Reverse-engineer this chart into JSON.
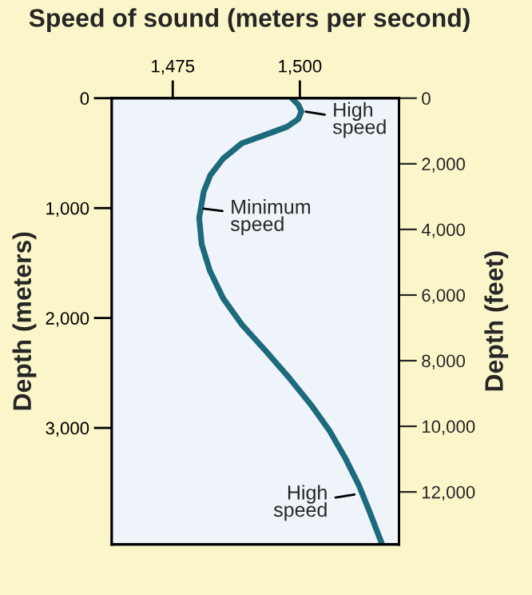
{
  "chart_data": {
    "type": "line",
    "xlabel": "Speed of sound (meters per second)",
    "ylabel": "Depth (meters)",
    "y2label": "Depth (feet)",
    "xlim": [
      1463,
      1519.5
    ],
    "xticks": [
      {
        "value": 1475,
        "label": "1,475"
      },
      {
        "value": 1500,
        "label": "1,500"
      }
    ],
    "ylim": [
      4060,
      0
    ],
    "yticks": [
      0,
      {
        "value": 1000,
        "label": "1,000"
      },
      {
        "value": 2000,
        "label": "2,000"
      },
      {
        "value": 3000,
        "label": "3,000"
      }
    ],
    "y2lim": [
      13600,
      0
    ],
    "y2ticks": [
      0,
      {
        "value": 2000,
        "label": "2,000"
      },
      {
        "value": 4000,
        "label": "4,000"
      },
      {
        "value": 6000,
        "label": "6,000"
      },
      {
        "value": 8000,
        "label": "8,000"
      },
      {
        "value": 10000,
        "label": "10,000"
      },
      {
        "value": 12000,
        "label": "12,000"
      }
    ],
    "series": [
      {
        "color": "#1c6a7c",
        "x": [
          1498.4,
          1499.7,
          1500.3,
          1499.7,
          1497.5,
          1492.8,
          1488.6,
          1484.9,
          1482.4,
          1481.1,
          1480.2,
          1480.7,
          1482.3,
          1484.9,
          1488.6,
          1493.3,
          1498.0,
          1502.2,
          1505.9,
          1509.0,
          1511.6,
          1513.7,
          1516.1
        ],
        "values": [
          0,
          60,
          120,
          190,
          260,
          340,
          410,
          550,
          700,
          850,
          1090,
          1330,
          1570,
          1820,
          2060,
          2300,
          2550,
          2790,
          3030,
          3280,
          3520,
          3760,
          4050
        ]
      }
    ],
    "annotations": [
      {
        "text": "High\nspeed",
        "x": 1500.3,
        "y": 117
      },
      {
        "text": "Minimum\nspeed",
        "x": 1480.2,
        "y": 1000
      },
      {
        "text": "High\nspeed",
        "x": 1511.6,
        "y": 3600
      }
    ],
    "grid": false,
    "legend": false,
    "marker": "none",
    "line_style": "solid"
  }
}
